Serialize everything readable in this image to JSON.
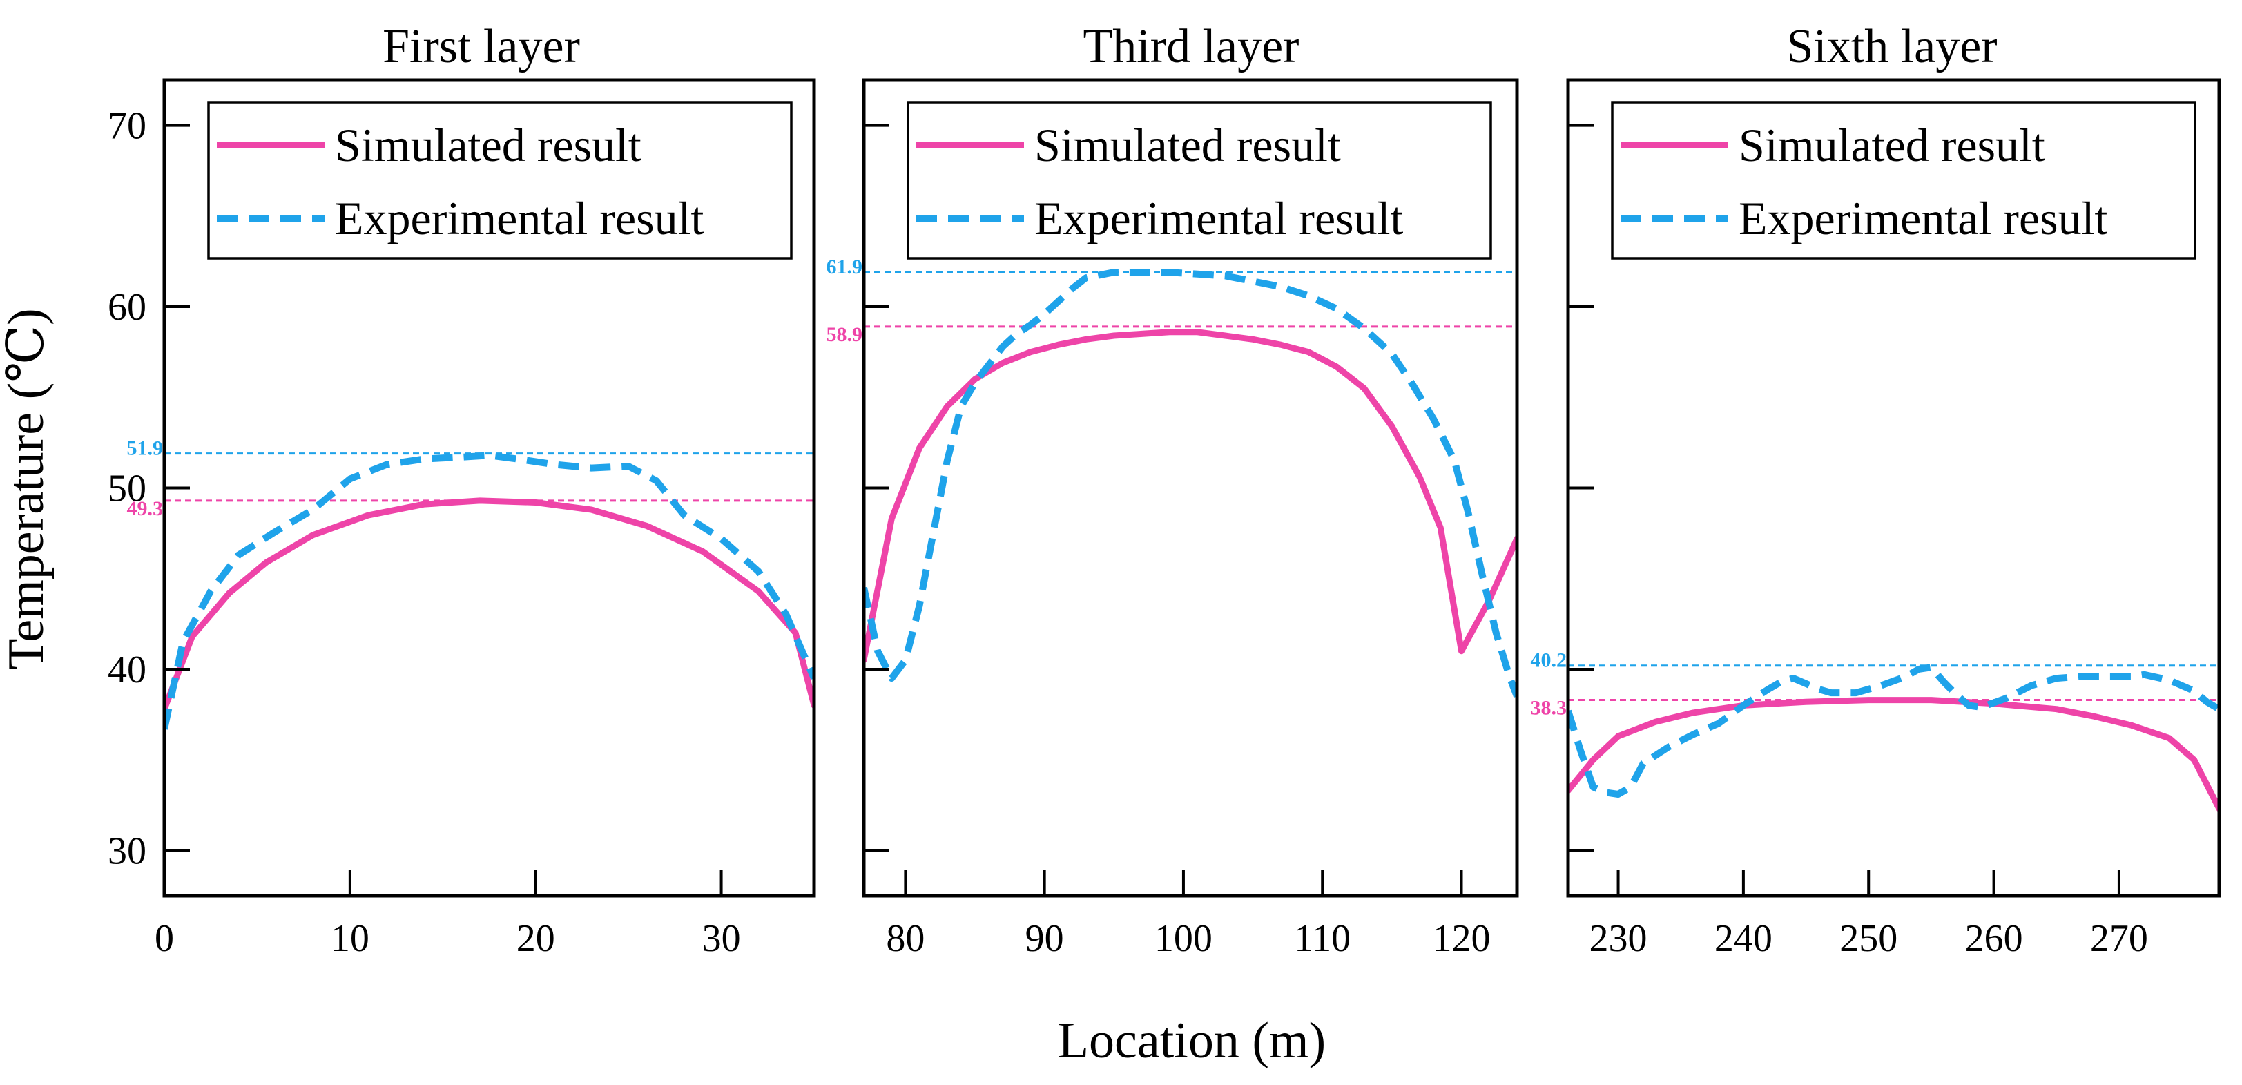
{
  "chart_data": {
    "type": "line",
    "ylabel": "Temperature (℃)",
    "xlabel": "Location (m)",
    "ylim": [
      27.5,
      72.5
    ],
    "yticks": [
      30,
      40,
      50,
      60,
      70
    ],
    "colors": {
      "simulated": "#ee44a8",
      "experimental": "#1fa3ea"
    },
    "legend": {
      "placement": "top",
      "entries": [
        "Simulated result",
        "Experimental result"
      ]
    },
    "panels": [
      {
        "title": "First layer",
        "xlim": [
          0,
          35
        ],
        "xticks": [
          0,
          10,
          20,
          30
        ],
        "reference_lines": [
          {
            "label": "51.9",
            "value": 51.9,
            "series": "experimental"
          },
          {
            "label": "49.3",
            "value": 49.3,
            "series": "simulated"
          }
        ],
        "series": [
          {
            "name": "Simulated result",
            "x": [
              0,
              1.5,
              3.5,
              5.5,
              8,
              11,
              14,
              17,
              20,
              23,
              26,
              29,
              32,
              34,
              35
            ],
            "y": [
              37.8,
              41.8,
              44.2,
              45.9,
              47.4,
              48.5,
              49.1,
              49.3,
              49.2,
              48.8,
              47.9,
              46.5,
              44.3,
              42.0,
              38.0
            ]
          },
          {
            "name": "Experimental result",
            "x": [
              0,
              1,
              2.5,
              4,
              6,
              8,
              10,
              12,
              14,
              16,
              17.5,
              19,
              21,
              23,
              25,
              26.5,
              28,
              30,
              32,
              33.5,
              35
            ],
            "y": [
              36.7,
              41.5,
              44.3,
              46.3,
              47.6,
              48.8,
              50.5,
              51.3,
              51.6,
              51.7,
              51.8,
              51.6,
              51.3,
              51.1,
              51.2,
              50.4,
              48.5,
              47.2,
              45.4,
              43.0,
              39.5
            ]
          }
        ]
      },
      {
        "title": "Third layer",
        "xlim": [
          77,
          124
        ],
        "xticks": [
          80,
          90,
          100,
          110,
          120
        ],
        "reference_lines": [
          {
            "label": "61.9",
            "value": 61.9,
            "series": "experimental"
          },
          {
            "label": "58.9",
            "value": 58.9,
            "series": "simulated"
          }
        ],
        "series": [
          {
            "name": "Simulated result",
            "x": [
              77,
              79,
              81,
              83,
              85,
              87,
              89,
              91,
              93,
              95,
              97,
              99,
              101,
              103,
              105,
              107,
              109,
              111,
              113,
              115,
              117,
              118.5,
              120,
              122,
              124
            ],
            "y": [
              40.5,
              48.3,
              52.2,
              54.5,
              56.0,
              56.9,
              57.5,
              57.9,
              58.2,
              58.4,
              58.5,
              58.6,
              58.6,
              58.4,
              58.2,
              57.9,
              57.5,
              56.7,
              55.5,
              53.4,
              50.6,
              47.8,
              41.0,
              43.8,
              47.2
            ]
          },
          {
            "name": "Experimental result",
            "x": [
              77,
              78,
              79,
              80,
              81,
              82,
              83,
              84,
              85,
              86,
              87,
              88,
              89,
              90,
              91,
              92,
              93,
              95,
              97,
              99,
              101,
              103,
              105,
              107,
              109,
              111,
              113,
              115,
              116.5,
              118,
              119.5,
              120.5,
              121.5,
              122.5,
              123.5,
              124
            ],
            "y": [
              44.5,
              41.0,
              39.5,
              40.5,
              43.5,
              47.5,
              51.5,
              54.5,
              55.8,
              56.8,
              57.8,
              58.5,
              59.0,
              59.6,
              60.3,
              61.0,
              61.6,
              61.9,
              61.9,
              61.9,
              61.8,
              61.7,
              61.4,
              61.1,
              60.6,
              59.9,
              58.8,
              57.4,
              55.7,
              53.8,
              51.5,
              48.6,
              45.2,
              42.0,
              39.5,
              38.5
            ]
          }
        ]
      },
      {
        "title": "Sixth layer",
        "xlim": [
          226,
          278
        ],
        "xticks": [
          230,
          240,
          250,
          260,
          270
        ],
        "reference_lines": [
          {
            "label": "40.2",
            "value": 40.2,
            "series": "experimental"
          },
          {
            "label": "38.3",
            "value": 38.3,
            "series": "simulated"
          }
        ],
        "series": [
          {
            "name": "Simulated result",
            "x": [
              226,
              228,
              230,
              233,
              236,
              240,
              245,
              250,
              255,
              260,
              265,
              268,
              271,
              274,
              276,
              278
            ],
            "y": [
              33.3,
              35.0,
              36.3,
              37.1,
              37.6,
              38.0,
              38.2,
              38.3,
              38.3,
              38.1,
              37.8,
              37.4,
              36.9,
              36.2,
              35.0,
              32.3
            ]
          },
          {
            "name": "Experimental result",
            "x": [
              226,
              227,
              228,
              229,
              230,
              231,
              232,
              234,
              236,
              238,
              240,
              242,
              243,
              244,
              245,
              246,
              247,
              249,
              251,
              253,
              254,
              255,
              256,
              257,
              258,
              259,
              261,
              263,
              265,
              267,
              269,
              271,
              272,
              274,
              276,
              277,
              278
            ],
            "y": [
              37.7,
              35.5,
              33.5,
              33.2,
              33.1,
              33.5,
              34.8,
              35.7,
              36.4,
              37.0,
              38.0,
              38.9,
              39.3,
              39.5,
              39.2,
              38.9,
              38.7,
              38.7,
              39.1,
              39.6,
              40.0,
              40.1,
              39.3,
              38.6,
              38.0,
              37.9,
              38.4,
              39.1,
              39.5,
              39.6,
              39.6,
              39.6,
              39.7,
              39.4,
              38.8,
              38.2,
              37.8
            ]
          }
        ]
      }
    ]
  }
}
